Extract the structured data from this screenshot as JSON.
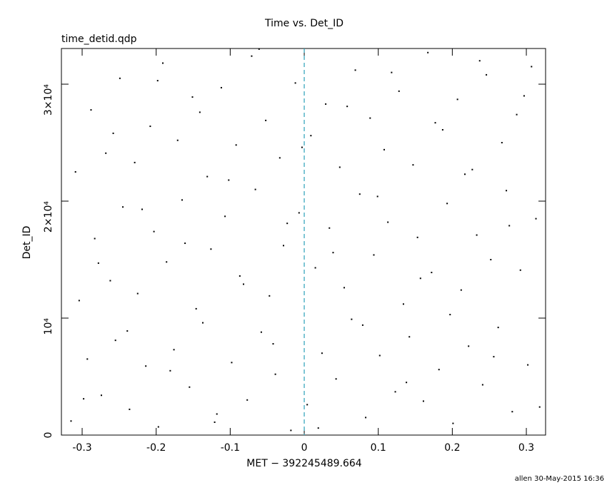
{
  "chart_data": {
    "type": "scatter",
    "title": "Time vs. Det_ID",
    "subtitle": "time_detid.qdp",
    "x_label": "MET − 392245489.664",
    "y_label": "Det_ID",
    "footer": "allen 30-May-2015 16:36",
    "color": "#000000",
    "reference_line": {
      "x": 0,
      "color": "#2aa0b8",
      "style": "dashed"
    },
    "xlim": [
      -0.328,
      0.326
    ],
    "ylim": [
      0,
      33050
    ],
    "xticks": [
      -0.3,
      -0.2,
      -0.1,
      0,
      0.1,
      0.2,
      0.3
    ],
    "yticks": [
      0,
      {
        "value": 10000,
        "label": "10⁴"
      },
      {
        "value": 20000,
        "label": "2×10⁴"
      },
      {
        "value": 30000,
        "label": "3×10⁴"
      }
    ],
    "x": [
      -0.315,
      -0.293,
      -0.274,
      -0.255,
      -0.236,
      -0.214,
      -0.197,
      -0.176,
      -0.155,
      -0.137,
      -0.118,
      -0.098,
      -0.077,
      -0.058,
      -0.039,
      -0.018,
      0.004,
      0.024,
      0.043,
      0.064,
      0.083,
      0.102,
      0.123,
      0.142,
      0.161,
      0.182,
      0.201,
      0.222,
      0.241,
      0.262,
      0.281,
      0.302,
      -0.304,
      -0.283,
      -0.262,
      -0.245,
      -0.225,
      -0.203,
      -0.186,
      -0.165,
      -0.146,
      -0.126,
      -0.107,
      -0.087,
      -0.066,
      -0.047,
      -0.028,
      -0.007,
      0.015,
      0.034,
      0.054,
      0.075,
      0.094,
      0.113,
      0.134,
      0.153,
      0.172,
      0.193,
      0.212,
      0.233,
      0.252,
      0.273,
      0.292,
      0.313,
      -0.309,
      -0.288,
      -0.268,
      -0.249,
      -0.229,
      -0.208,
      -0.191,
      -0.171,
      -0.151,
      -0.131,
      -0.112,
      -0.092,
      -0.071,
      -0.052,
      -0.033,
      -0.012,
      0.009,
      0.029,
      0.048,
      0.069,
      0.089,
      0.108,
      0.128,
      0.147,
      0.167,
      0.187,
      0.207,
      0.227,
      0.246,
      0.267,
      0.287,
      0.307,
      -0.298,
      -0.278,
      -0.258,
      -0.239,
      -0.219,
      -0.198,
      -0.181,
      -0.161,
      -0.141,
      -0.121,
      -0.102,
      -0.082,
      -0.061,
      -0.042,
      -0.023,
      -0.003,
      0.019,
      0.039,
      0.058,
      0.079,
      0.099,
      0.118,
      0.138,
      0.157,
      0.177,
      0.197,
      0.217,
      0.237,
      0.256,
      0.277,
      0.297,
      0.318
    ],
    "values": [
      1200,
      6500,
      3400,
      8100,
      2200,
      5900,
      700,
      7300,
      4100,
      9600,
      1800,
      6200,
      3000,
      8800,
      5200,
      400,
      2600,
      7000,
      4800,
      9900,
      1500,
      6800,
      3700,
      8400,
      2900,
      5600,
      1000,
      7600,
      4300,
      9200,
      2000,
      6000,
      11500,
      16800,
      13200,
      19500,
      12100,
      17400,
      14800,
      20100,
      10800,
      15900,
      18700,
      13600,
      21000,
      11900,
      16200,
      19000,
      14300,
      17700,
      12600,
      20600,
      15400,
      18200,
      11200,
      16900,
      13900,
      19800,
      12400,
      17100,
      15000,
      20900,
      14100,
      18500,
      22500,
      27800,
      24100,
      30500,
      23300,
      26400,
      31800,
      25200,
      28900,
      22100,
      29700,
      24800,
      32400,
      26900,
      23700,
      30100,
      25600,
      28300,
      22900,
      31200,
      27100,
      24400,
      29400,
      23100,
      32700,
      26100,
      28700,
      22700,
      30800,
      25000,
      27400,
      31500,
      3100,
      14700,
      25800,
      8900,
      19300,
      30300,
      5500,
      16400,
      27600,
      1100,
      21800,
      12900,
      33000,
      7800,
      18100,
      24600,
      600,
      15600,
      28100,
      9400,
      20400,
      31000,
      4500,
      13400,
      26700,
      10300,
      22300,
      32000,
      6700,
      17900,
      29000,
      2400
    ]
  }
}
